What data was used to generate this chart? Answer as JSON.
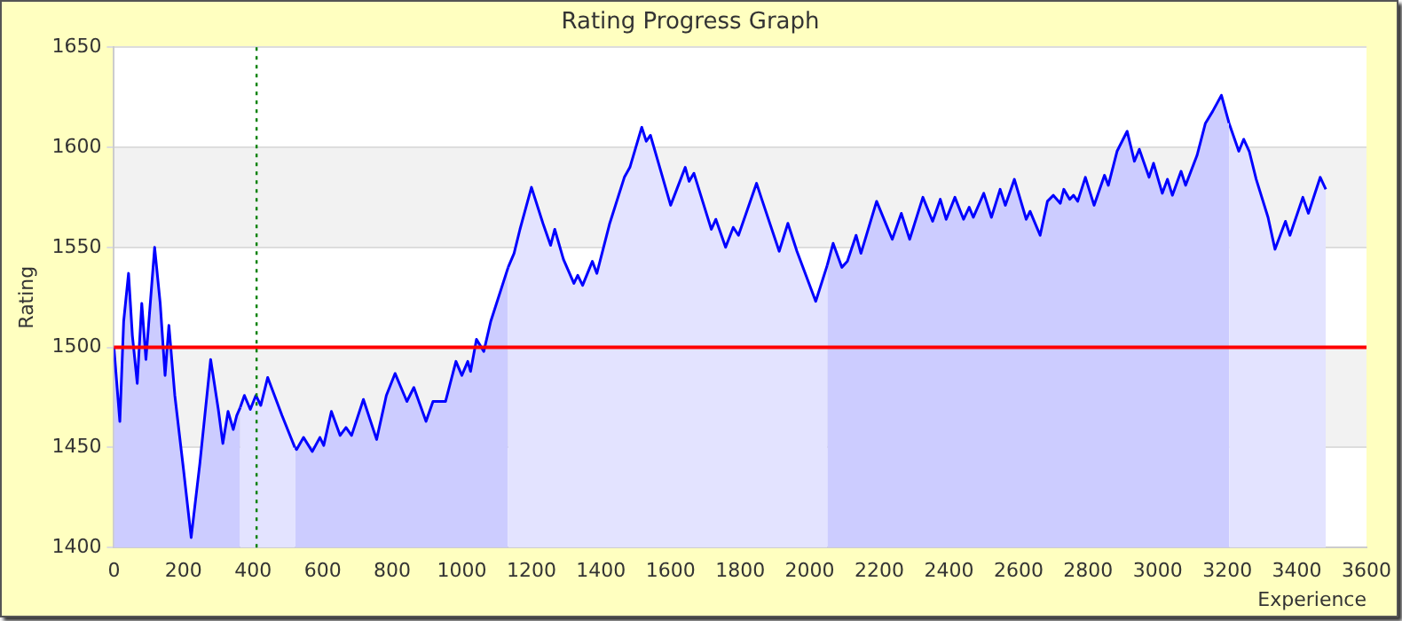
{
  "chart_data": {
    "type": "area",
    "title": "Rating Progress Graph",
    "xlabel": "Experience",
    "ylabel": "Rating",
    "xlim": [
      0,
      3600
    ],
    "xticks": [
      0,
      200,
      400,
      600,
      800,
      1000,
      1200,
      1400,
      1600,
      1800,
      2000,
      2200,
      2400,
      2600,
      2800,
      3000,
      3200,
      3400,
      3600
    ],
    "ylim": [
      1400,
      1650
    ],
    "yticks": [
      1400,
      1450,
      1500,
      1550,
      1600,
      1650
    ],
    "grid": "y",
    "legend": false,
    "marker": "none",
    "series": [
      {
        "color": "#0000ff",
        "x": [
          0,
          17,
          28,
          42,
          53,
          67,
          80,
          92,
          117,
          133,
          147,
          158,
          175,
          200,
          222,
          247,
          278,
          300,
          313,
          328,
          343,
          353,
          363
        ],
        "values": [
          1500,
          1463,
          1513,
          1537,
          1506,
          1482,
          1522,
          1494,
          1550,
          1522,
          1486,
          1511,
          1476,
          1439,
          1405,
          1442,
          1494,
          1469,
          1452,
          1468,
          1459,
          1466,
          1470
        ]
      },
      {
        "color": "#0000ff",
        "x": [
          363,
          375,
          392,
          408,
          422,
          442,
          483,
          520
        ],
        "values": [
          1470,
          1476,
          1469,
          1476,
          1471,
          1485,
          1466,
          1450
        ]
      },
      {
        "color": "#0000ff",
        "x": [
          520,
          525,
          545,
          570,
          592,
          603,
          625,
          650,
          667,
          683,
          717,
          755,
          783,
          808,
          842,
          862,
          897,
          917,
          933,
          953,
          983,
          1000,
          1017,
          1025,
          1042,
          1063,
          1083,
          1133
        ],
        "values": [
          1450,
          1449,
          1455,
          1448,
          1455,
          1451,
          1468,
          1456,
          1460,
          1456,
          1474,
          1454,
          1476,
          1487,
          1473,
          1480,
          1463,
          1473,
          1473,
          1473,
          1493,
          1486,
          1493,
          1488,
          1504,
          1498,
          1513,
          1540
        ]
      },
      {
        "color": "#0000ff",
        "x": [
          1133,
          1150,
          1167,
          1200,
          1233,
          1255,
          1267,
          1292,
          1322,
          1333,
          1347,
          1375,
          1388,
          1425,
          1467,
          1483,
          1517,
          1530,
          1542,
          1567,
          1600,
          1642,
          1653,
          1667,
          1717,
          1730,
          1758,
          1780,
          1795,
          1847,
          1862,
          1912,
          1937,
          1963,
          2017,
          2050
        ],
        "values": [
          1540,
          1547,
          1559,
          1580,
          1562,
          1551,
          1559,
          1544,
          1532,
          1536,
          1531,
          1543,
          1537,
          1562,
          1585,
          1590,
          1610,
          1603,
          1606,
          1591,
          1571,
          1590,
          1583,
          1587,
          1559,
          1564,
          1550,
          1560,
          1556,
          1582,
          1574,
          1548,
          1562,
          1548,
          1523,
          1541
        ]
      },
      {
        "color": "#0000ff",
        "x": [
          2050,
          2067,
          2092,
          2108,
          2133,
          2147,
          2192,
          2237,
          2263,
          2287,
          2325,
          2353,
          2375,
          2392,
          2417,
          2442,
          2458,
          2470,
          2500,
          2522,
          2547,
          2562,
          2588,
          2622,
          2633,
          2662,
          2683,
          2700,
          2720,
          2730,
          2747,
          2758,
          2770,
          2792,
          2817,
          2847,
          2858,
          2883,
          2912,
          2933,
          2947,
          2975,
          2988,
          3013,
          3028,
          3042,
          3067,
          3080,
          3113,
          3137,
          3158,
          3183,
          3205
        ],
        "values": [
          1541,
          1552,
          1540,
          1543,
          1556,
          1547,
          1573,
          1554,
          1567,
          1554,
          1575,
          1563,
          1574,
          1564,
          1575,
          1564,
          1570,
          1565,
          1577,
          1565,
          1579,
          1571,
          1584,
          1564,
          1568,
          1556,
          1573,
          1576,
          1572,
          1579,
          1574,
          1576,
          1573,
          1585,
          1571,
          1586,
          1581,
          1598,
          1608,
          1593,
          1599,
          1585,
          1592,
          1577,
          1584,
          1576,
          1588,
          1581,
          1596,
          1612,
          1618,
          1626,
          1612
        ]
      },
      {
        "color": "#0000ff",
        "x": [
          3205,
          3213,
          3233,
          3247,
          3263,
          3283,
          3317,
          3337,
          3367,
          3380,
          3417,
          3433,
          3467,
          3483
        ],
        "values": [
          1612,
          1608,
          1598,
          1604,
          1598,
          1584,
          1565,
          1549,
          1563,
          1556,
          1575,
          1567,
          1585,
          1579
        ]
      }
    ],
    "ref_lines": [
      {
        "axis": "y",
        "value": 1500,
        "color": "#ff0000",
        "line_style": "solid"
      },
      {
        "axis": "x",
        "value": 410,
        "color": "#008000",
        "line_style": "dotted"
      }
    ]
  }
}
